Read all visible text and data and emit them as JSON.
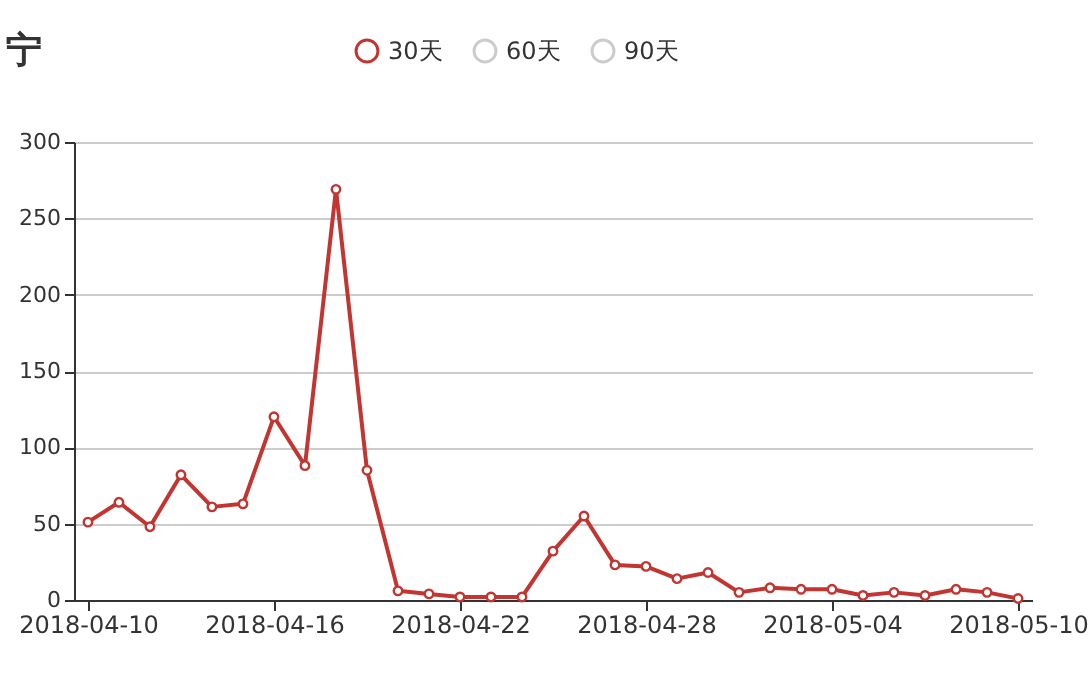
{
  "chart_data": {
    "type": "line",
    "title": "宁",
    "categories": [
      "2018-04-10",
      null,
      null,
      null,
      null,
      null,
      "2018-04-16",
      null,
      null,
      null,
      null,
      null,
      "2018-04-22",
      null,
      null,
      null,
      null,
      null,
      "2018-04-28",
      null,
      null,
      null,
      null,
      null,
      "2018-05-04",
      null,
      null,
      null,
      null,
      null,
      "2018-05-10"
    ],
    "series": [
      {
        "name": "30天",
        "color": "#c23531",
        "values": [
          51,
          64,
          48,
          82,
          61,
          63,
          120,
          88,
          269,
          85,
          6,
          4,
          2,
          2,
          2,
          32,
          55,
          23,
          22,
          14,
          18,
          5,
          8,
          7,
          7,
          3,
          5,
          3,
          7,
          5,
          1
        ]
      },
      {
        "name": "60天",
        "color": "#cccccc",
        "values": [
          null,
          null,
          null,
          null,
          null,
          null,
          null,
          null,
          null,
          null,
          null,
          null,
          null,
          null,
          null,
          null,
          null,
          null,
          null,
          null,
          null,
          null,
          null,
          null,
          null,
          null,
          null,
          null,
          null,
          null,
          null
        ]
      },
      {
        "name": "90天",
        "color": "#cccccc",
        "values": [
          null,
          null,
          null,
          null,
          null,
          null,
          null,
          null,
          null,
          null,
          null,
          null,
          null,
          null,
          null,
          null,
          null,
          null,
          null,
          null,
          null,
          null,
          null,
          null,
          null,
          null,
          null,
          null,
          null,
          null,
          null
        ]
      }
    ],
    "ylim": [
      0,
      300
    ],
    "yticks": [
      0,
      50,
      100,
      150,
      200,
      250,
      300
    ],
    "grid": "y",
    "legend": "top",
    "marker": "circle",
    "line_style": "solid"
  }
}
